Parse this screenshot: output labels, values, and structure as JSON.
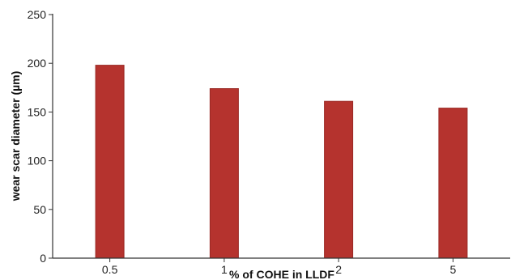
{
  "chart_data": {
    "type": "bar",
    "categories": [
      "0.5",
      "1",
      "2",
      "5"
    ],
    "values": [
      198,
      174,
      161,
      154
    ],
    "xlabel": "% of COHE in LLDF",
    "ylabel": "wear scar diameter (µm)",
    "ylim": [
      0,
      250
    ],
    "yticks": [
      0,
      50,
      100,
      150,
      200,
      250
    ],
    "grid": false,
    "legend": "none",
    "bar_color": "#b5332e",
    "bar_edge_color": "#9a2a26"
  }
}
